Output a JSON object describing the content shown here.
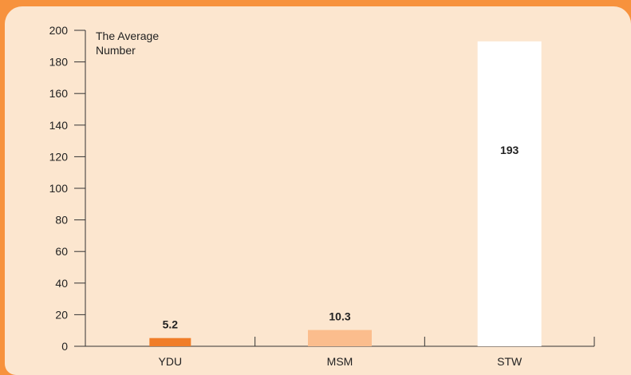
{
  "chart_data": {
    "type": "bar",
    "categories": [
      "YDU",
      "MSM",
      "STW"
    ],
    "values": [
      5.2,
      10.3,
      193
    ],
    "value_labels": [
      "5.2",
      "10.3",
      "193"
    ],
    "ylabel_lines": [
      "The Average",
      "Number"
    ],
    "xlabel": "",
    "ylim": [
      0,
      200
    ],
    "yticks": [
      0,
      20,
      40,
      60,
      80,
      100,
      120,
      140,
      160,
      180,
      200
    ],
    "grid": false,
    "colors": {
      "background": "#f7923d",
      "panel": "#fce6cf",
      "bars": [
        "#f07d28",
        "#fbbd8d",
        "#ffffff"
      ]
    }
  }
}
